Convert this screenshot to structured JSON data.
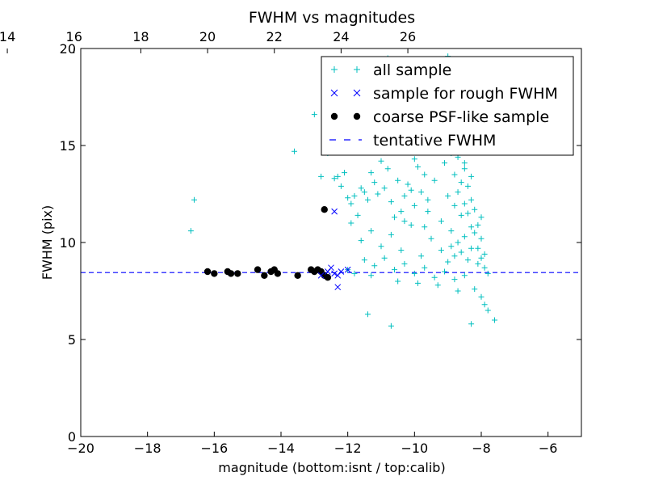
{
  "chart_data": {
    "type": "scatter",
    "title": "FWHM vs magnitudes",
    "xlabel": "magnitude (bottom:isnt / top:calib)",
    "ylabel": "FWHM (pix)",
    "xlim": [
      -20,
      -5
    ],
    "ylim": [
      0,
      20
    ],
    "x_ticks": [
      -20,
      -18,
      -16,
      -14,
      -12,
      -10,
      -8,
      -6
    ],
    "x_tick_labels": [
      "−20",
      "−18",
      "−16",
      "−14",
      "−12",
      "−10",
      "−8",
      "−6"
    ],
    "y_ticks": [
      0,
      5,
      10,
      15,
      20
    ],
    "y_tick_labels": [
      "0",
      "5",
      "10",
      "15",
      "20"
    ],
    "top_axis": {
      "offset": 36.2,
      "ticks": [
        14,
        16,
        18,
        20,
        22,
        24,
        26
      ],
      "tick_labels": [
        "14",
        "16",
        "18",
        "20",
        "22",
        "24",
        "26"
      ]
    },
    "grid": false,
    "legend_position": "top-right",
    "colors": {
      "all_sample": "#00bfbf",
      "rough_sample": "#0000ff",
      "psf_sample": "#000000",
      "fwhm_line": "#0000ff"
    },
    "series": [
      {
        "name": "all sample",
        "marker": "plus",
        "points": [
          [
            -16.7,
            10.6
          ],
          [
            -16.6,
            12.2
          ],
          [
            -13.6,
            14.7
          ],
          [
            -13.0,
            16.6
          ],
          [
            -12.8,
            13.4
          ],
          [
            -12.7,
            15.8
          ],
          [
            -12.6,
            14.6
          ],
          [
            -12.4,
            13.3
          ],
          [
            -12.3,
            13.4
          ],
          [
            -12.2,
            12.9
          ],
          [
            -12.1,
            13.6
          ],
          [
            -12.0,
            12.3
          ],
          [
            -11.9,
            12.0
          ],
          [
            -11.8,
            12.4
          ],
          [
            -11.7,
            11.4
          ],
          [
            -11.6,
            12.8
          ],
          [
            -11.5,
            12.6
          ],
          [
            -11.4,
            12.2
          ],
          [
            -11.3,
            13.6
          ],
          [
            -11.2,
            13.1
          ],
          [
            -11.1,
            12.5
          ],
          [
            -11.0,
            14.2
          ],
          [
            -10.9,
            12.8
          ],
          [
            -10.8,
            13.8
          ],
          [
            -10.7,
            12.1
          ],
          [
            -10.6,
            11.3
          ],
          [
            -10.5,
            13.2
          ],
          [
            -10.4,
            11.6
          ],
          [
            -10.3,
            12.4
          ],
          [
            -10.2,
            13.0
          ],
          [
            -10.1,
            12.7
          ],
          [
            -10.0,
            14.3
          ],
          [
            -9.9,
            13.9
          ],
          [
            -9.8,
            12.6
          ],
          [
            -9.7,
            13.5
          ],
          [
            -9.6,
            12.2
          ],
          [
            -9.5,
            15.6
          ],
          [
            -9.4,
            14.7
          ],
          [
            -9.3,
            16.1
          ],
          [
            -9.2,
            17.0
          ],
          [
            -9.1,
            18.2
          ],
          [
            -9.0,
            19.6
          ],
          [
            -8.9,
            16.8
          ],
          [
            -8.8,
            17.8
          ],
          [
            -8.7,
            15.4
          ],
          [
            -8.6,
            16.6
          ],
          [
            -8.5,
            14.1
          ],
          [
            -8.4,
            15.2
          ],
          [
            -8.3,
            13.4
          ],
          [
            -10.8,
            19.5
          ],
          [
            -10.2,
            18.4
          ],
          [
            -9.8,
            19.1
          ],
          [
            -9.3,
            18.8
          ],
          [
            -8.9,
            19.3
          ],
          [
            -10.5,
            16.2
          ],
          [
            -11.2,
            17.6
          ],
          [
            -9.6,
            17.4
          ],
          [
            -8.6,
            18.0
          ],
          [
            -11.9,
            11.0
          ],
          [
            -11.6,
            10.1
          ],
          [
            -11.3,
            10.6
          ],
          [
            -11.0,
            9.8
          ],
          [
            -10.7,
            10.4
          ],
          [
            -10.4,
            9.6
          ],
          [
            -10.1,
            10.9
          ],
          [
            -9.8,
            9.3
          ],
          [
            -9.5,
            10.2
          ],
          [
            -9.2,
            11.1
          ],
          [
            -8.9,
            10.6
          ],
          [
            -8.6,
            11.4
          ],
          [
            -8.3,
            10.8
          ],
          [
            -8.1,
            9.7
          ],
          [
            -8.0,
            10.2
          ],
          [
            -7.9,
            9.4
          ],
          [
            -11.5,
            9.1
          ],
          [
            -11.2,
            8.8
          ],
          [
            -10.9,
            9.2
          ],
          [
            -10.6,
            8.6
          ],
          [
            -10.3,
            8.9
          ],
          [
            -10.0,
            8.4
          ],
          [
            -9.7,
            8.7
          ],
          [
            -9.4,
            8.2
          ],
          [
            -9.1,
            8.5
          ],
          [
            -8.8,
            8.1
          ],
          [
            -8.5,
            8.3
          ],
          [
            -8.2,
            7.6
          ],
          [
            -8.0,
            7.2
          ],
          [
            -7.9,
            6.8
          ],
          [
            -7.8,
            6.5
          ],
          [
            -7.6,
            6.0
          ],
          [
            -8.3,
            5.8
          ],
          [
            -10.7,
            5.7
          ],
          [
            -11.4,
            6.3
          ],
          [
            -12.0,
            8.6
          ],
          [
            -11.8,
            8.4
          ],
          [
            -11.3,
            8.3
          ],
          [
            -10.5,
            8.0
          ],
          [
            -9.9,
            7.9
          ],
          [
            -9.3,
            7.8
          ],
          [
            -8.7,
            7.5
          ],
          [
            -9.0,
            12.4
          ],
          [
            -8.8,
            11.9
          ],
          [
            -8.7,
            12.6
          ],
          [
            -8.6,
            13.1
          ],
          [
            -8.5,
            12.0
          ],
          [
            -8.4,
            11.5
          ],
          [
            -8.3,
            12.2
          ],
          [
            -8.2,
            11.7
          ],
          [
            -8.1,
            10.9
          ],
          [
            -8.0,
            11.3
          ],
          [
            -9.2,
            9.6
          ],
          [
            -9.0,
            9.0
          ],
          [
            -8.9,
            9.8
          ],
          [
            -8.8,
            9.3
          ],
          [
            -8.7,
            10.0
          ],
          [
            -8.6,
            9.5
          ],
          [
            -8.5,
            10.3
          ],
          [
            -8.4,
            9.1
          ],
          [
            -8.3,
            9.7
          ],
          [
            -8.2,
            10.5
          ],
          [
            -8.1,
            8.9
          ],
          [
            -8.0,
            9.2
          ],
          [
            -7.9,
            8.7
          ],
          [
            -7.8,
            8.4
          ],
          [
            -9.1,
            14.1
          ],
          [
            -8.9,
            14.6
          ],
          [
            -8.8,
            13.5
          ],
          [
            -8.7,
            14.4
          ],
          [
            -8.5,
            13.8
          ],
          [
            -8.4,
            12.9
          ],
          [
            -9.4,
            13.2
          ],
          [
            -9.6,
            11.6
          ],
          [
            -9.7,
            10.8
          ],
          [
            -10.0,
            11.9
          ],
          [
            -10.3,
            11.1
          ]
        ]
      },
      {
        "name": "sample for rough FWHM",
        "marker": "x",
        "points": [
          [
            -12.4,
            11.6
          ],
          [
            -12.5,
            8.7
          ],
          [
            -12.4,
            8.4
          ],
          [
            -12.3,
            8.3
          ],
          [
            -12.2,
            8.5
          ],
          [
            -12.0,
            8.6
          ],
          [
            -12.3,
            7.7
          ],
          [
            -12.6,
            8.5
          ],
          [
            -12.8,
            8.3
          ]
        ]
      },
      {
        "name": "coarse PSF-like sample",
        "marker": "dot",
        "points": [
          [
            -16.2,
            8.5
          ],
          [
            -16.0,
            8.4
          ],
          [
            -15.6,
            8.5
          ],
          [
            -15.5,
            8.4
          ],
          [
            -15.3,
            8.4
          ],
          [
            -14.7,
            8.6
          ],
          [
            -14.5,
            8.3
          ],
          [
            -14.3,
            8.5
          ],
          [
            -14.2,
            8.6
          ],
          [
            -14.1,
            8.4
          ],
          [
            -13.5,
            8.3
          ],
          [
            -13.1,
            8.6
          ],
          [
            -13.0,
            8.5
          ],
          [
            -12.9,
            8.6
          ],
          [
            -12.8,
            8.5
          ],
          [
            -12.7,
            8.3
          ],
          [
            -12.6,
            8.2
          ],
          [
            -12.7,
            11.7
          ]
        ]
      },
      {
        "name": "tentative FWHM",
        "marker": "dashed-line",
        "y": 8.45
      }
    ]
  }
}
